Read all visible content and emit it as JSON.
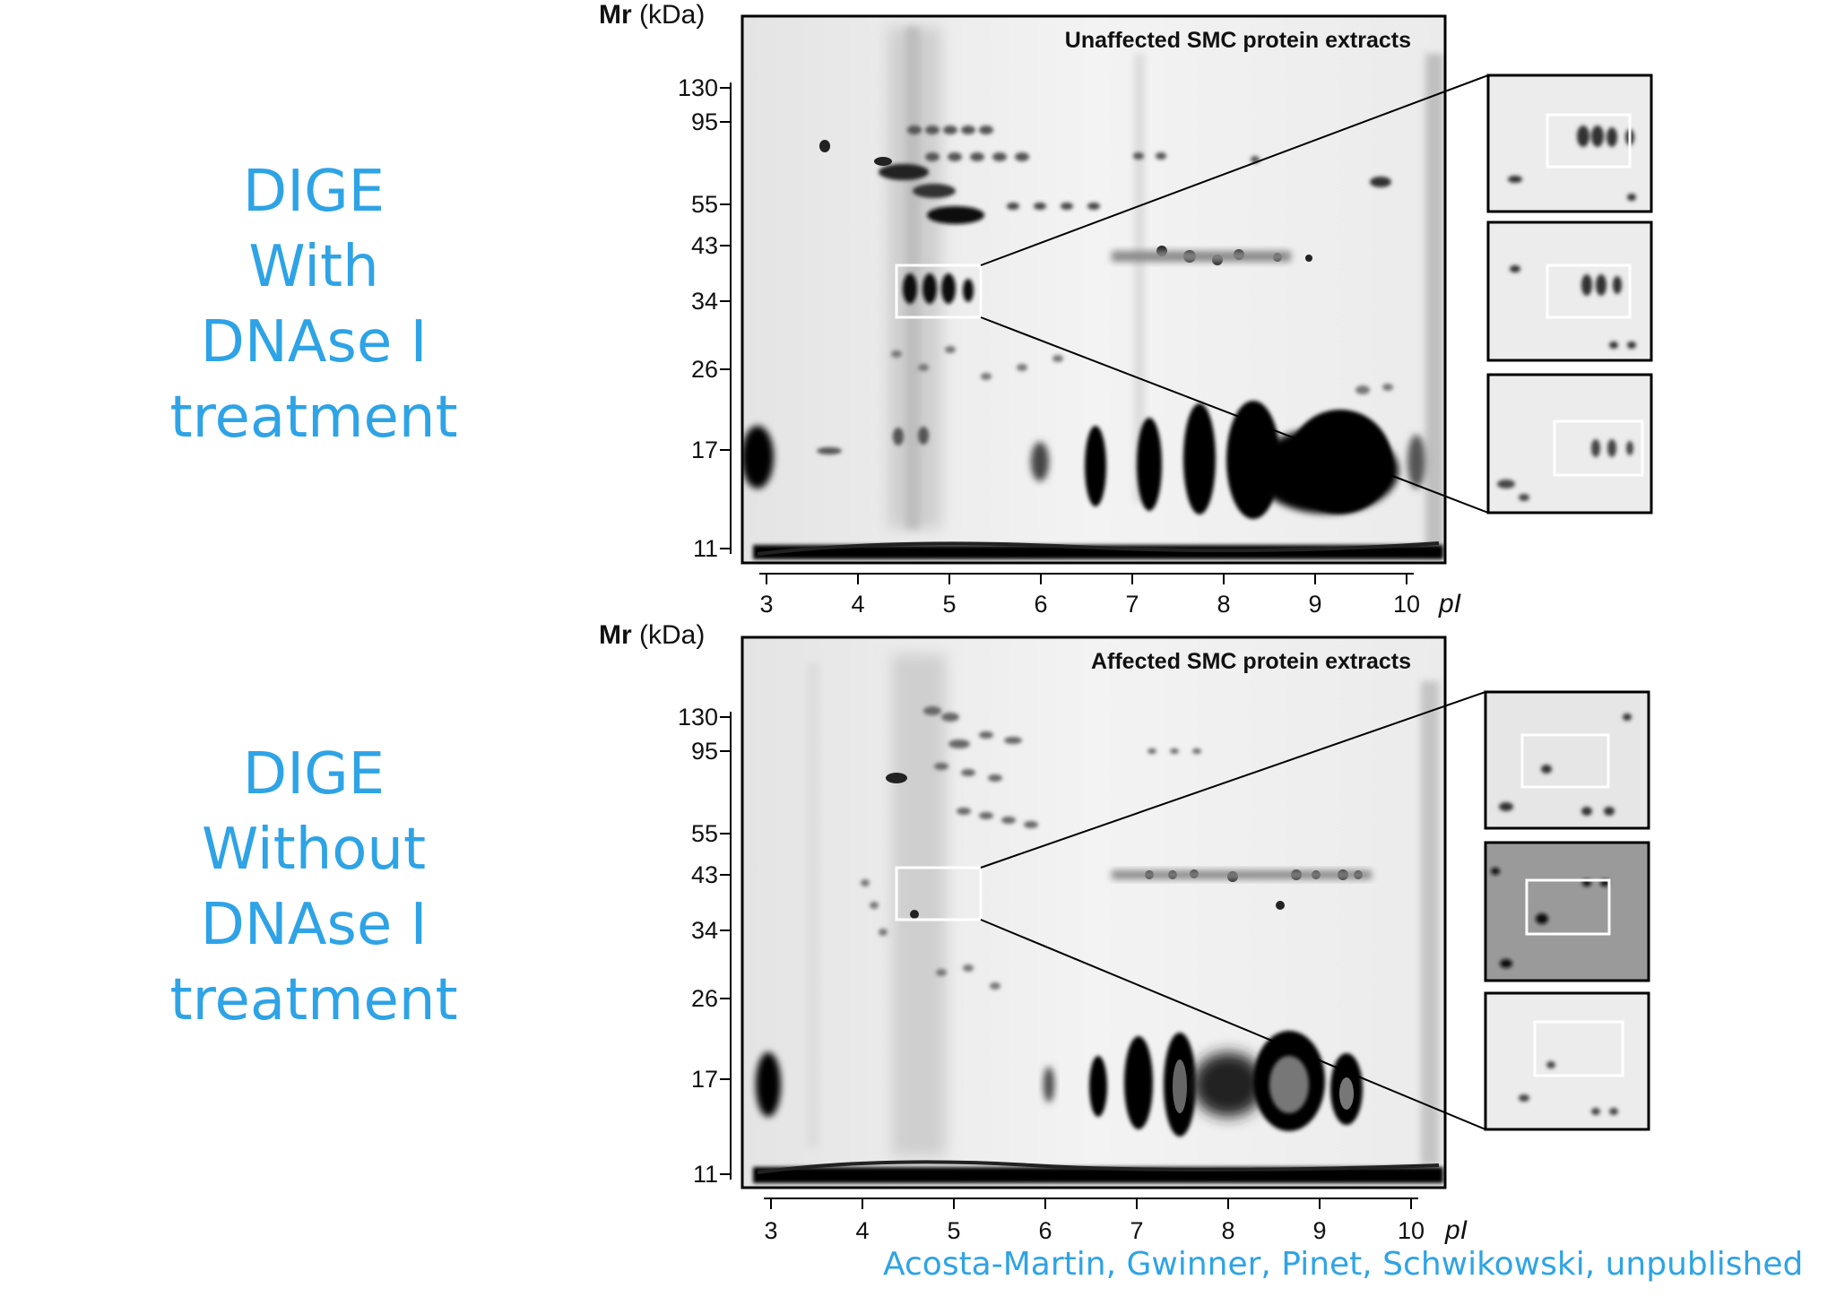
{
  "labels": {
    "top": [
      "DIGE",
      "With",
      "DNAse I",
      "treatment"
    ],
    "bottom": [
      "DIGE",
      "Without",
      "DNAse I",
      "treatment"
    ]
  },
  "axis": {
    "mr_symbol": "Mr",
    "mr_unit": "(kDa)",
    "pi_symbol": "pI",
    "mr_ticks": [
      "130",
      "95",
      "55",
      "43",
      "34",
      "26",
      "17",
      "11"
    ],
    "pi_ticks": [
      "3",
      "4",
      "5",
      "6",
      "7",
      "8",
      "9",
      "10"
    ]
  },
  "gels": {
    "top": {
      "title": "Unaffected SMC protein extracts"
    },
    "bottom": {
      "title": "Affected SMC protein extracts"
    }
  },
  "citation": "Acosta-Martin, Gwinner,  Pinet, Schwikowski, unpublished",
  "colors": {
    "accent": "#2ea3e6",
    "gel_ink": "#111111",
    "frame": "#000000"
  }
}
